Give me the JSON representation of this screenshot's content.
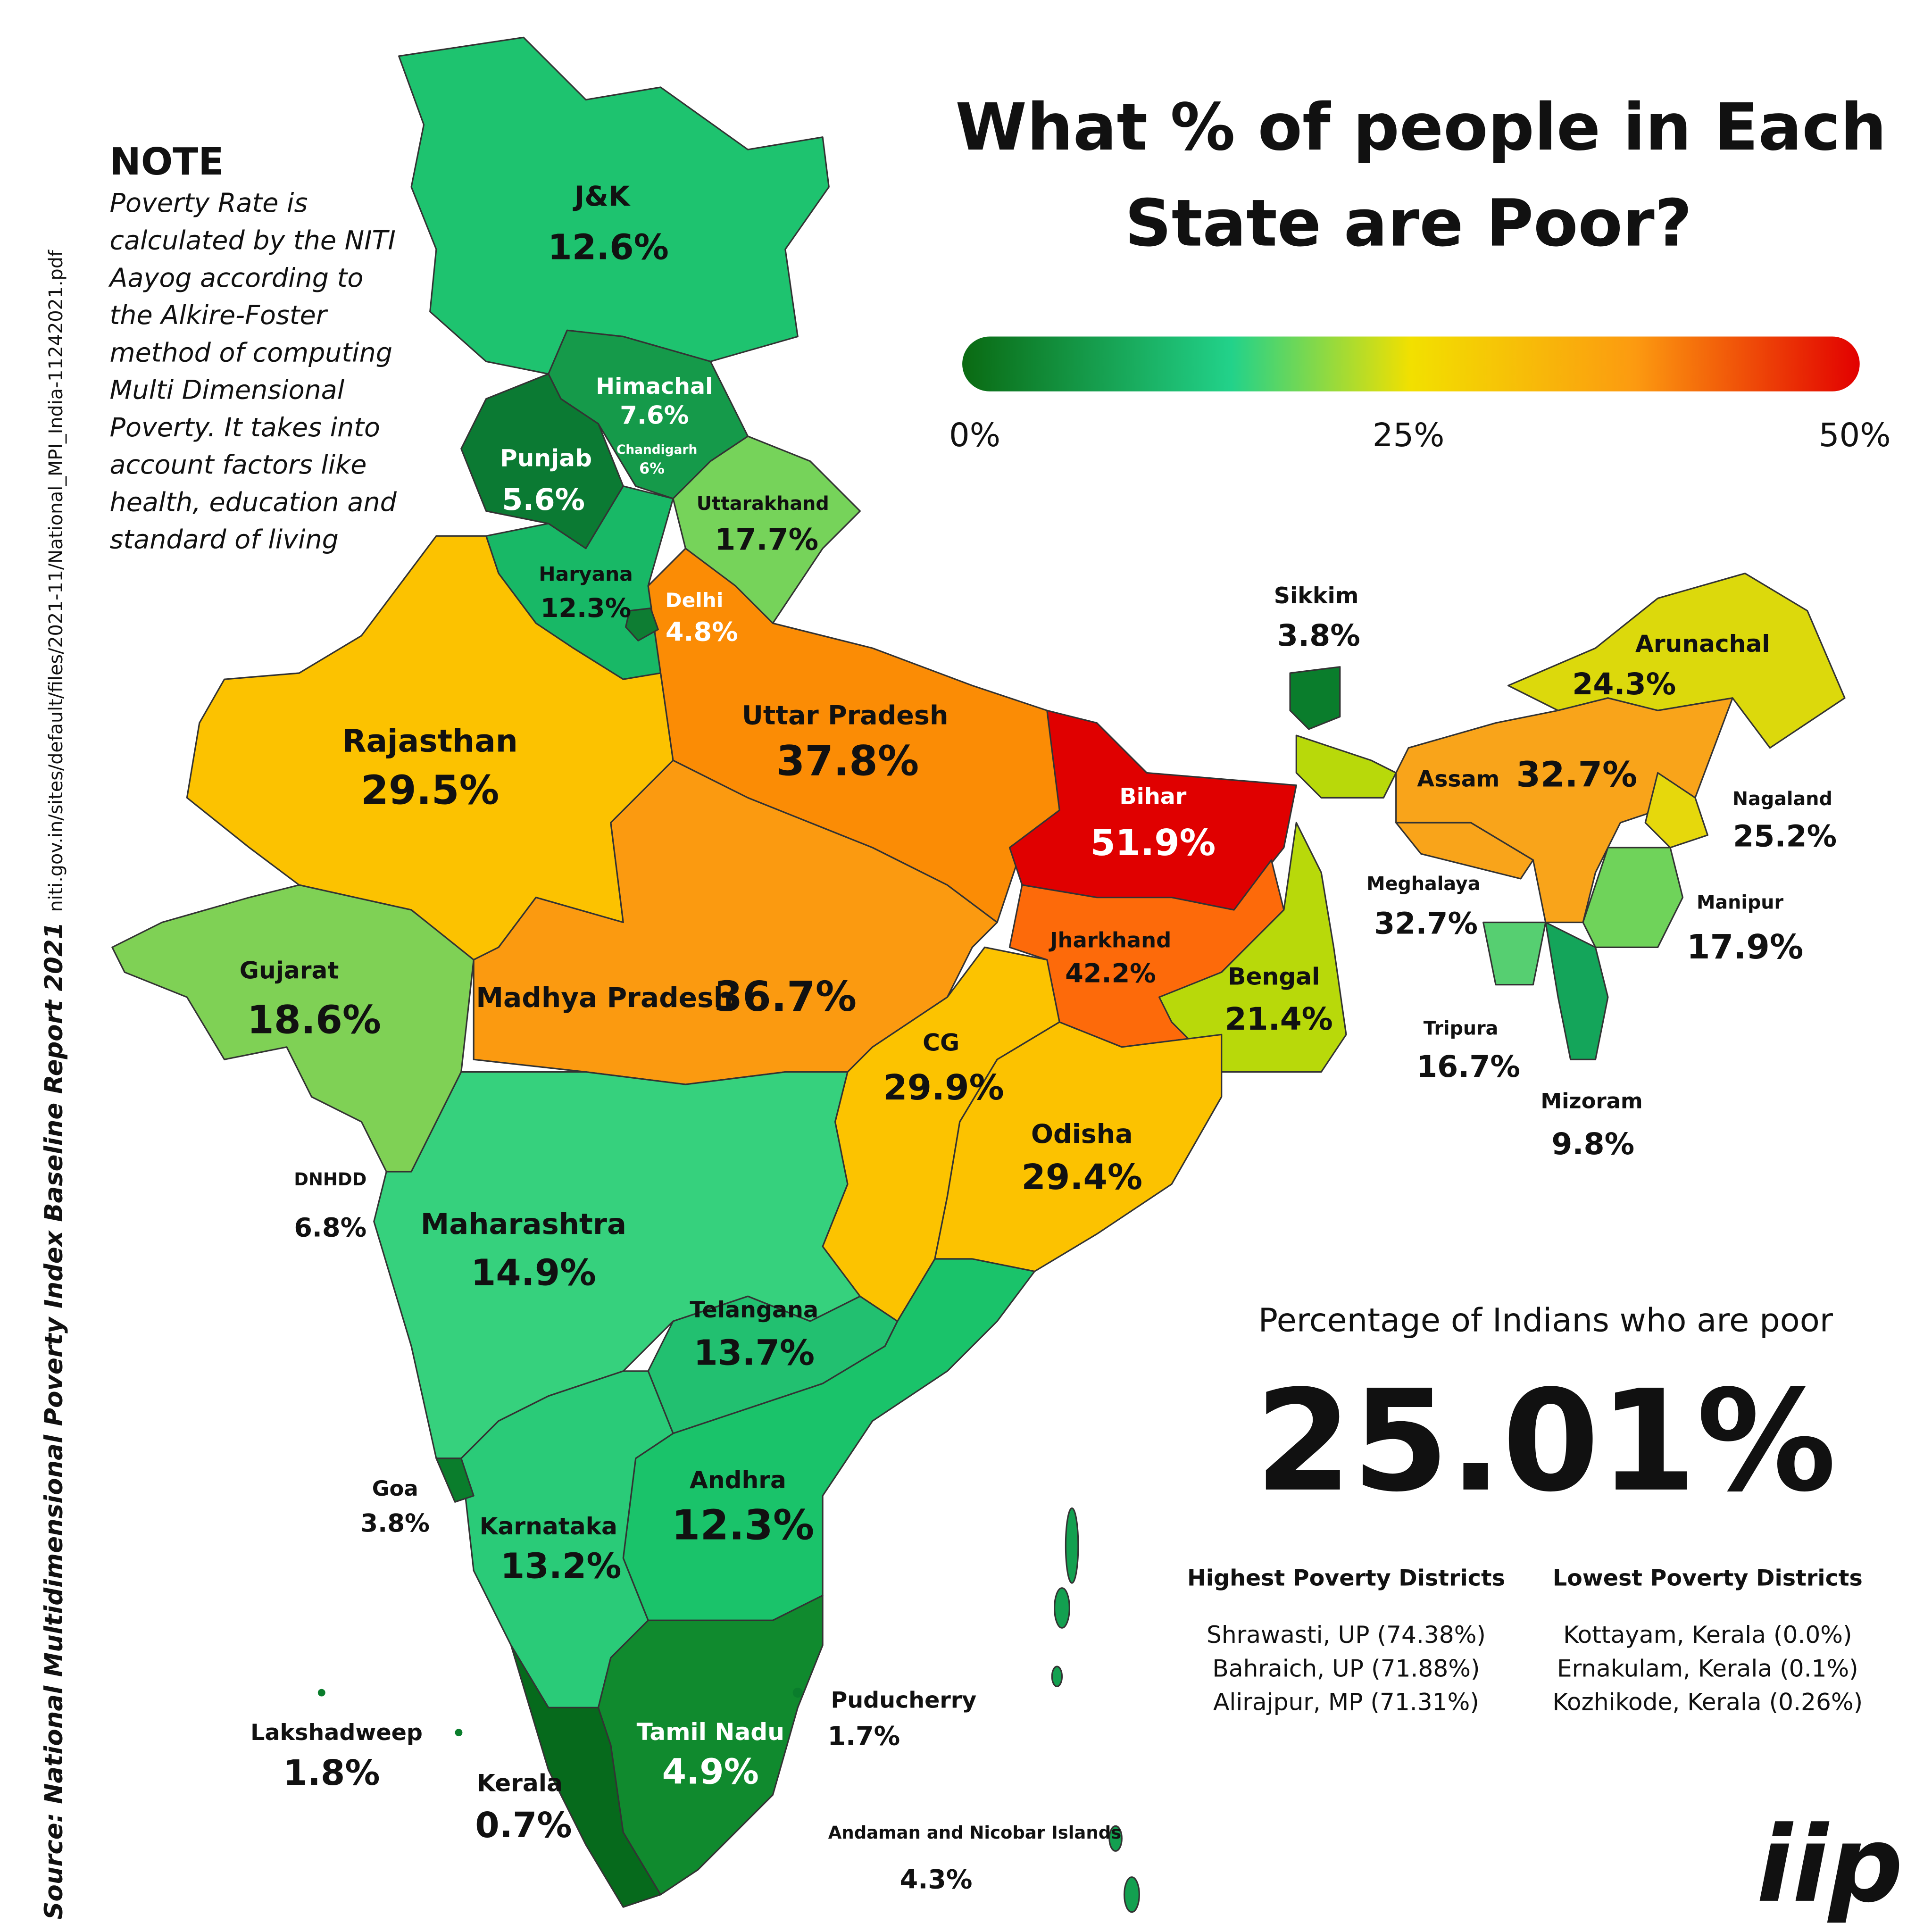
{
  "title": [
    "What % of people in Each",
    "State are Poor?"
  ],
  "note": {
    "heading": "NOTE",
    "lines": [
      "Poverty Rate is",
      "calculated by the NITI",
      "Aayog according to",
      "the Alkire-Foster",
      "method of computing",
      "Multi Dimensional",
      "Poverty. It takes into",
      "account factors like",
      "health, education and",
      "standard of living"
    ]
  },
  "source": {
    "label": "Source: National Multidimensional Poverty Index Baseline Report 2021",
    "url": "niti.gov.in/sites/default/files/2021-11/National_MPI_India-11242021.pdf"
  },
  "scale": {
    "ticks": [
      "0%",
      "25%",
      "50%"
    ]
  },
  "regions": [
    {
      "name": "J&K",
      "value": "12.6%"
    },
    {
      "name": "Himachal",
      "value": "7.6%"
    },
    {
      "name": "Chandigarh",
      "value": "6%"
    },
    {
      "name": "Punjab",
      "value": "5.6%"
    },
    {
      "name": "Uttarakhand",
      "value": "17.7%"
    },
    {
      "name": "Haryana",
      "value": "12.3%"
    },
    {
      "name": "Delhi",
      "value": "4.8%"
    },
    {
      "name": "Rajasthan",
      "value": "29.5%"
    },
    {
      "name": "Uttar Pradesh",
      "value": "37.8%"
    },
    {
      "name": "Bihar",
      "value": "51.9%"
    },
    {
      "name": "Gujarat",
      "value": "18.6%"
    },
    {
      "name": "Madhya Pradesh",
      "value": "36.7%"
    },
    {
      "name": "Jharkhand",
      "value": "42.2%"
    },
    {
      "name": "Bengal",
      "value": "21.4%"
    },
    {
      "name": "CG",
      "value": "29.9%"
    },
    {
      "name": "Odisha",
      "value": "29.4%"
    },
    {
      "name": "DNHDD",
      "value": "6.8%"
    },
    {
      "name": "Maharashtra",
      "value": "14.9%"
    },
    {
      "name": "Telangana",
      "value": "13.7%"
    },
    {
      "name": "Goa",
      "value": "3.8%"
    },
    {
      "name": "Karnataka",
      "value": "13.2%"
    },
    {
      "name": "Andhra",
      "value": "12.3%"
    },
    {
      "name": "Puducherry",
      "value": "1.7%"
    },
    {
      "name": "Lakshadweep",
      "value": "1.8%"
    },
    {
      "name": "Kerala",
      "value": "0.7%"
    },
    {
      "name": "Tamil Nadu",
      "value": "4.9%"
    },
    {
      "name": "Andaman and Nicobar Islands",
      "value": "4.3%"
    },
    {
      "name": "Sikkim",
      "value": "3.8%"
    },
    {
      "name": "Arunachal",
      "value": "24.3%"
    },
    {
      "name": "Assam",
      "value": "32.7%"
    },
    {
      "name": "Nagaland",
      "value": "25.2%"
    },
    {
      "name": "Meghalaya",
      "value": "32.7%"
    },
    {
      "name": "Manipur",
      "value": "17.9%"
    },
    {
      "name": "Tripura",
      "value": "16.7%"
    },
    {
      "name": "Mizoram",
      "value": "9.8%"
    }
  ],
  "summary": {
    "heading": "Percentage of Indians who are poor",
    "value": "25.01%"
  },
  "highest": {
    "heading": "Highest Poverty Districts",
    "items": [
      "Shrawasti, UP (74.38%)",
      "Bahraich, UP (71.88%)",
      "Alirajpur, MP (71.31%)"
    ]
  },
  "lowest": {
    "heading": "Lowest Poverty Districts",
    "items": [
      "Kottayam, Kerala (0.0%)",
      "Ernakulam, Kerala (0.1%)",
      "Kozhikode, Kerala (0.26%)"
    ]
  },
  "logo": "iip"
}
